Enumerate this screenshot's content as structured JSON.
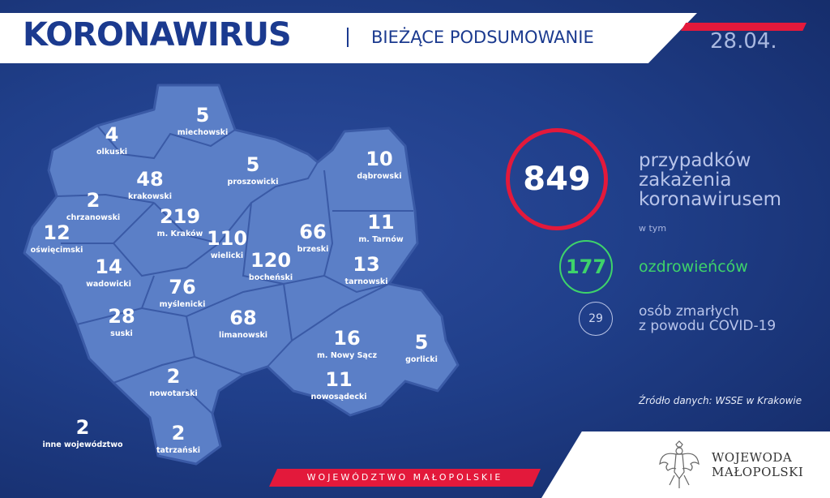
{
  "header": {
    "title": "KORONAWIRUS",
    "subtitle": "BIEŻĄCE PODSUMOWANIE",
    "date": "28.04."
  },
  "colors": {
    "background": "#203f8a",
    "accent_red": "#e3193b",
    "recovered_green": "#3ed36a",
    "map_fill": "#5b7fc7"
  },
  "counties": [
    {
      "count": "4",
      "name": "olkuski"
    },
    {
      "count": "5",
      "name": "miechowski"
    },
    {
      "count": "48",
      "name": "krakowski"
    },
    {
      "count": "5",
      "name": "proszowicki"
    },
    {
      "count": "10",
      "name": "dąbrowski"
    },
    {
      "count": "2",
      "name": "chrzanowski"
    },
    {
      "count": "219",
      "name": "m. Kraków"
    },
    {
      "count": "12",
      "name": "oświęcimski"
    },
    {
      "count": "110",
      "name": "wielicki"
    },
    {
      "count": "66",
      "name": "brzeski"
    },
    {
      "count": "11",
      "name": "m. Tarnów"
    },
    {
      "count": "14",
      "name": "wadowicki"
    },
    {
      "count": "120",
      "name": "bocheński"
    },
    {
      "count": "13",
      "name": "tarnowski"
    },
    {
      "count": "76",
      "name": "myślenicki"
    },
    {
      "count": "28",
      "name": "suski"
    },
    {
      "count": "68",
      "name": "limanowski"
    },
    {
      "count": "16",
      "name": "m. Nowy Sącz"
    },
    {
      "count": "5",
      "name": "gorlicki"
    },
    {
      "count": "2",
      "name": "nowotarski"
    },
    {
      "count": "11",
      "name": "nowosądecki"
    },
    {
      "count": "2",
      "name": "tatrzański"
    },
    {
      "count": "2",
      "name": "inne województwo"
    }
  ],
  "summary": {
    "cases": "849",
    "cases_label": [
      "przypadków",
      "zakażenia",
      "koronawirusem"
    ],
    "including": "w tym",
    "recovered": "177",
    "recovered_label": "ozdrowieńców",
    "deaths": "29",
    "deaths_label": [
      "osób zmarłych",
      "z powodu COVID-19"
    ]
  },
  "source": "Źródło danych: WSSE w Krakowie",
  "footer": {
    "region": "WOJEWÓDZTWO MAŁOPOLSKIE",
    "logo_text": [
      "WOJEWODA",
      "MAŁOPOLSKI"
    ],
    "logo_icon": "polish-eagle-emblem"
  }
}
